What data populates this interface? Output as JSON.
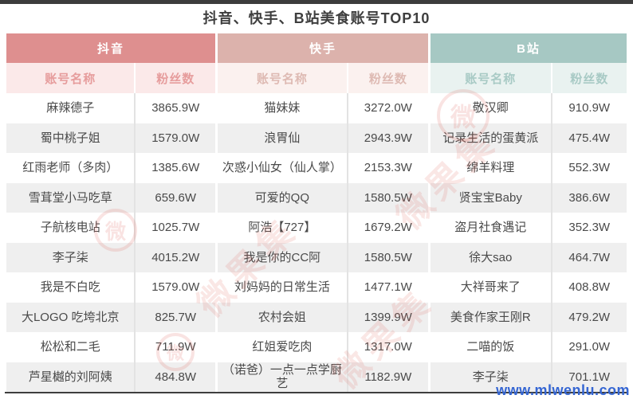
{
  "page": {
    "top_bar_color": "#3c3c3c"
  },
  "footer": {
    "site_url": "www.mlwenlu.com",
    "url_color": "#3566d3"
  },
  "watermark": {
    "stamp_text": "微果集",
    "logo_char": "微",
    "color": "#dd5a50"
  },
  "theme": {
    "douyin_header_bg": "#de8f8f",
    "douyin_sub_bg": "#fbe9e9",
    "douyin_sub_text": "#e69c9c",
    "kuaishou_header_bg": "#dcb2ac",
    "kuaishou_sub_bg": "#fbf1ef",
    "kuaishou_sub_text": "#debab3",
    "bilibili_header_bg": "#a6c8c3",
    "bilibili_sub_bg": "#e9f2f0",
    "bilibili_sub_text": "#a8cac5",
    "row_alt_bg": "#efefef",
    "row_text": "#4a4a4a"
  },
  "chart_data": {
    "type": "table",
    "title": "抖音、快手、B站美食账号TOP10",
    "column_headers": [
      "账号名称",
      "粉丝数"
    ],
    "legend_position": "none",
    "groups": [
      {
        "platform": "抖音",
        "rows": [
          [
            "麻辣德子",
            "3865.9W"
          ],
          [
            "蜀中桃子姐",
            "1579.0W"
          ],
          [
            "红雨老师（多肉）",
            "1385.6W"
          ],
          [
            "雪茸堂小马吃草",
            "659.6W"
          ],
          [
            "子航核电站",
            "1025.7W"
          ],
          [
            "李子柒",
            "4015.2W"
          ],
          [
            "我是不白吃",
            "1579.0W"
          ],
          [
            "大LOGO 吃垮北京",
            "825.7W"
          ],
          [
            "松松和二毛",
            "711.9W"
          ],
          [
            "芦星樾的刘阿姨",
            "484.8W"
          ]
        ]
      },
      {
        "platform": "快手",
        "rows": [
          [
            "猫妹妹",
            "3272.0W"
          ],
          [
            "浪胃仙",
            "2943.9W"
          ],
          [
            "次惑小仙女（仙人掌）",
            "2153.3W"
          ],
          [
            "可爱的QQ",
            "1580.5W"
          ],
          [
            "阿浩【727】",
            "1679.2W"
          ],
          [
            "我是你的CC阿",
            "1580.5W"
          ],
          [
            "刘妈妈的日常生活",
            "1477.1W"
          ],
          [
            "农村会姐",
            "1399.9W"
          ],
          [
            "红姐爱吃肉",
            "1317.0W"
          ],
          [
            "（诺爸）一点一点学厨艺",
            "1182.9W"
          ]
        ]
      },
      {
        "platform": "B站",
        "rows": [
          [
            "敬汉卿",
            "910.9W"
          ],
          [
            "记录生活的蛋黄派",
            "475.4W"
          ],
          [
            "绵羊料理",
            "552.3W"
          ],
          [
            "贤宝宝Baby",
            "386.6W"
          ],
          [
            "盗月社食遇记",
            "352.3W"
          ],
          [
            "徐大sao",
            "464.7W"
          ],
          [
            "大祥哥来了",
            "408.8W"
          ],
          [
            "美食作家王刚R",
            "479.2W"
          ],
          [
            "二喵的饭",
            "291.0W"
          ],
          [
            "李子柒",
            "701.1W"
          ]
        ]
      }
    ]
  }
}
